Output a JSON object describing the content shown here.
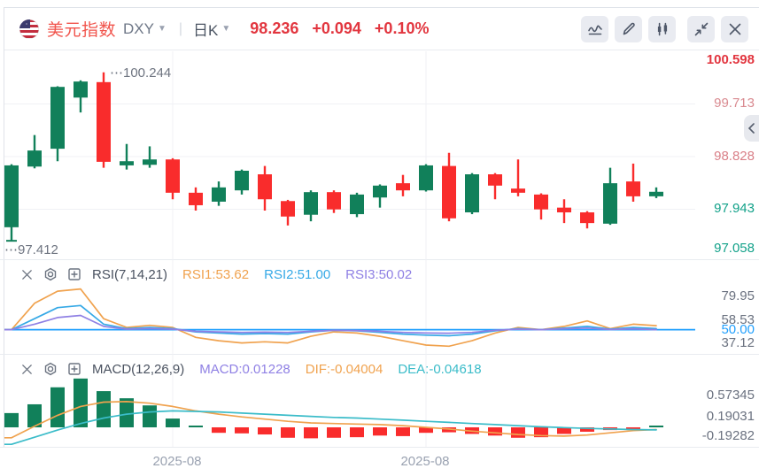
{
  "header": {
    "title": "美元指数",
    "symbol": "DXY",
    "period": "日K",
    "price": "98.236",
    "change": "+0.094",
    "change_pct": "+0.10%"
  },
  "toolbar": {
    "icons": [
      "indicator-line-icon",
      "pencil-draw-icon",
      "candlestick-icon",
      "collapse-icon",
      "close-icon"
    ]
  },
  "rsi_panel": {
    "title": "RSI(7,14,21)",
    "values": [
      {
        "label": "RSI1:53.62",
        "color": "#f0a24e"
      },
      {
        "label": "RSI2:51.00",
        "color": "#36a9e6"
      },
      {
        "label": "RSI3:50.02",
        "color": "#8f80e4"
      }
    ]
  },
  "macd_panel": {
    "title": "MACD(12,26,9)",
    "values": [
      {
        "label": "MACD:0.01228",
        "color": "#8f80e4"
      },
      {
        "label": "DIF:-0.04004",
        "color": "#f0a24e"
      },
      {
        "label": "DEA:-0.04618",
        "color": "#3bbcc9"
      }
    ]
  },
  "time_axis": {
    "labels": [
      {
        "text": "2025-08",
        "x": 200
      },
      {
        "text": "2025-08",
        "x": 480
      }
    ]
  },
  "colors": {
    "up": "#11805a",
    "down": "#f92c2c",
    "grid": "#f0f1f5",
    "marker_text": "#6e7480",
    "hline_blue": "#1f9ffe",
    "tick_gray": "#6b7280"
  },
  "chart_data": [
    {
      "type": "candlestick",
      "title": "美元指数 DXY 日K",
      "ylim": [
        97.102,
        100.598
      ],
      "y_ticks": [
        {
          "label": "100.598",
          "value": 100.598,
          "color": "#e2353f",
          "bold": true
        },
        {
          "label": "99.713",
          "value": 99.713,
          "color": "#d98a90"
        },
        {
          "label": "98.828",
          "value": 98.828,
          "color": "#d97f87"
        },
        {
          "label": "97.943",
          "value": 97.943,
          "color": "#12a189"
        },
        {
          "label": "97.058",
          "value": 97.058,
          "color": "#12a189"
        }
      ],
      "x_tick_indices": [
        7,
        18
      ],
      "high_marker": {
        "label": "100.244",
        "value": 100.244,
        "candle_index": 4
      },
      "low_marker": {
        "label": "97.412",
        "value": 97.412,
        "candle_index": 0
      },
      "ohlc": [
        [
          97.64,
          98.7,
          97.412,
          98.68
        ],
        [
          98.66,
          99.19,
          98.63,
          98.93
        ],
        [
          98.96,
          100.01,
          98.75,
          100.0
        ],
        [
          99.82,
          100.11,
          99.57,
          100.09
        ],
        [
          100.08,
          100.244,
          98.64,
          98.74
        ],
        [
          98.68,
          99.04,
          98.61,
          98.75
        ],
        [
          98.69,
          99.0,
          98.64,
          98.78
        ],
        [
          98.78,
          98.8,
          98.11,
          98.22
        ],
        [
          98.22,
          98.31,
          97.92,
          98.01
        ],
        [
          98.07,
          98.41,
          98.0,
          98.31
        ],
        [
          98.26,
          98.61,
          98.19,
          98.59
        ],
        [
          98.53,
          98.67,
          97.92,
          98.11
        ],
        [
          98.08,
          98.1,
          97.67,
          97.82
        ],
        [
          97.85,
          98.26,
          97.74,
          98.23
        ],
        [
          98.23,
          98.26,
          97.88,
          97.94
        ],
        [
          97.86,
          98.22,
          97.81,
          98.19
        ],
        [
          98.14,
          98.36,
          97.97,
          98.34
        ],
        [
          98.38,
          98.52,
          98.16,
          98.26
        ],
        [
          98.26,
          98.7,
          98.24,
          98.68
        ],
        [
          98.67,
          98.89,
          97.74,
          97.79
        ],
        [
          97.89,
          98.55,
          97.86,
          98.53
        ],
        [
          98.53,
          98.55,
          98.11,
          98.34
        ],
        [
          98.29,
          98.78,
          98.16,
          98.22
        ],
        [
          98.19,
          98.21,
          97.77,
          97.94
        ],
        [
          97.97,
          98.11,
          97.71,
          97.89
        ],
        [
          97.89,
          97.91,
          97.62,
          97.71
        ],
        [
          97.7,
          98.64,
          97.68,
          98.38
        ],
        [
          98.41,
          98.71,
          98.07,
          98.16
        ],
        [
          98.16,
          98.31,
          98.13,
          98.236
        ]
      ]
    },
    {
      "type": "line",
      "title": "RSI(7,14,21)",
      "ylim": [
        28,
        114
      ],
      "hline": {
        "value": 50,
        "color": "#1f9ffe"
      },
      "y_ticks": [
        {
          "label": "79.95",
          "value": 79.95,
          "color": "#6b7280"
        },
        {
          "label": "58.53",
          "value": 58.53,
          "color": "#6b7280"
        },
        {
          "label": "50.00",
          "value": 50.0,
          "color": "#1f9ffe"
        },
        {
          "label": "37.12",
          "value": 37.12,
          "color": "#6b7280"
        }
      ],
      "series": [
        {
          "name": "RSI1",
          "color": "#f0a24e",
          "values": [
            50,
            74,
            85,
            87,
            60,
            52,
            54,
            52,
            43,
            40,
            38,
            39,
            38,
            44,
            48,
            47,
            44,
            40,
            36,
            35,
            40,
            47,
            52,
            50,
            53,
            58,
            51,
            55,
            53.62
          ]
        },
        {
          "name": "RSI2",
          "color": "#36a9e6",
          "values": [
            50,
            60,
            70,
            72,
            55,
            51,
            52,
            51,
            48,
            47,
            46,
            46.5,
            46,
            48,
            49.5,
            49,
            47.5,
            46,
            45,
            44.5,
            46,
            49,
            51,
            50,
            51.5,
            53,
            50.5,
            52,
            51
          ]
        },
        {
          "name": "RSI3",
          "color": "#8f80e4",
          "values": [
            50,
            55,
            61,
            63,
            53,
            50.5,
            51,
            50.5,
            48.5,
            48,
            47.5,
            47.8,
            47.5,
            48.5,
            49.5,
            49.2,
            48.5,
            47.5,
            47,
            46.8,
            47.5,
            49.5,
            50.5,
            50,
            50.8,
            51.5,
            50.2,
            50.8,
            50.02
          ]
        }
      ]
    },
    {
      "type": "macd",
      "title": "MACD(12,26,9)",
      "ylim": [
        -0.355,
        1.339
      ],
      "y_ticks": [
        {
          "label": "0.57345",
          "value": 0.57345,
          "color": "#6b7280"
        },
        {
          "label": "0.19031",
          "value": 0.19031,
          "color": "#6b7280"
        },
        {
          "label": "-0.19282",
          "value": -0.19282,
          "color": "#6b7280"
        }
      ],
      "histogram": [
        0.26,
        0.42,
        0.73,
        0.89,
        0.66,
        0.53,
        0.4,
        0.16,
        0.02,
        -0.1,
        -0.11,
        -0.13,
        -0.19,
        -0.2,
        -0.19,
        -0.18,
        -0.15,
        -0.16,
        -0.1,
        -0.09,
        -0.12,
        -0.15,
        -0.19,
        -0.18,
        -0.12,
        -0.08,
        -0.05,
        -0.03,
        0.01228
      ],
      "series": [
        {
          "name": "DIF",
          "color": "#f0a24e",
          "values": [
            -0.19,
            0.02,
            0.22,
            0.38,
            0.46,
            0.47,
            0.44,
            0.38,
            0.3,
            0.24,
            0.19,
            0.15,
            0.11,
            0.08,
            0.07,
            0.06,
            0.05,
            0.03,
            0.0,
            -0.03,
            -0.07,
            -0.1,
            -0.13,
            -0.15,
            -0.16,
            -0.14,
            -0.1,
            -0.06,
            -0.04004
          ]
        },
        {
          "name": "DEA",
          "color": "#3bbcc9",
          "values": [
            -0.31,
            -0.18,
            -0.05,
            0.07,
            0.17,
            0.24,
            0.28,
            0.3,
            0.29,
            0.28,
            0.26,
            0.24,
            0.22,
            0.2,
            0.18,
            0.17,
            0.15,
            0.13,
            0.11,
            0.09,
            0.07,
            0.05,
            0.03,
            0.01,
            -0.005,
            -0.02,
            -0.03,
            -0.04,
            -0.04618
          ]
        }
      ]
    }
  ]
}
